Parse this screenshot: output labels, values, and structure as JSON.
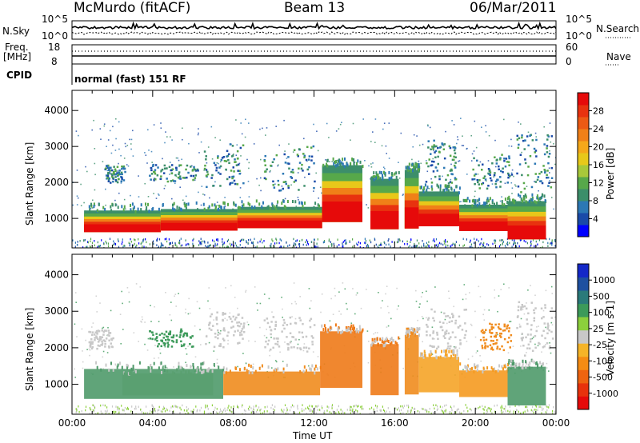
{
  "header": {
    "radar_title": "McMurdo (fitACF)",
    "beam": "Beam 13",
    "date": "06/Mar/2011"
  },
  "noise_panel": {
    "left_label": "N.Sky",
    "right_label": "N.Search",
    "left_ticks": [
      "10^5",
      "10^0"
    ],
    "right_ticks": [
      "10^5",
      "10^0"
    ]
  },
  "freq_panel": {
    "left_label_1": "Freq.",
    "left_label_2": "[MHz]",
    "right_label": "Nave",
    "left_ticks": [
      "18",
      "8"
    ],
    "right_ticks": [
      "60",
      "0"
    ]
  },
  "cpid_panel": {
    "label": "CPID",
    "mode": "normal (fast) 151 RF"
  },
  "chart_data": [
    {
      "type": "heatmap",
      "name_on_chart": "Power [dB]",
      "ylabel": "Slant Range [km]",
      "xlabel": "",
      "x_range_hours": [
        0,
        24
      ],
      "ylim": [
        180,
        4560
      ],
      "y_ticks": [
        "1000",
        "2000",
        "3000",
        "4000"
      ],
      "colorbar": {
        "label": "Power [dB]",
        "ticks": [
          "4",
          "8",
          "12",
          "16",
          "20",
          "24",
          "28"
        ],
        "colors": [
          "#0000ff",
          "#1a4aa8",
          "#2c78b4",
          "#3c8e6a",
          "#57a84a",
          "#a8c83a",
          "#e8c81a",
          "#f5a81a",
          "#f08018",
          "#ec5a14",
          "#e8320f",
          "#e60a0a"
        ]
      },
      "blocks_km": [
        {
          "t0": 0.6,
          "t1": 4.4,
          "lo": 620,
          "hi": 1220
        },
        {
          "t0": 4.4,
          "t1": 8.2,
          "lo": 660,
          "hi": 1260
        },
        {
          "t0": 8.2,
          "t1": 12.4,
          "lo": 730,
          "hi": 1320
        },
        {
          "t0": 12.4,
          "t1": 14.4,
          "lo": 900,
          "hi": 2480
        },
        {
          "t0": 14.8,
          "t1": 16.2,
          "lo": 700,
          "hi": 2100
        },
        {
          "t0": 16.5,
          "t1": 17.2,
          "lo": 720,
          "hi": 2350
        },
        {
          "t0": 17.2,
          "t1": 19.2,
          "lo": 780,
          "hi": 1750
        },
        {
          "t0": 19.2,
          "t1": 21.6,
          "lo": 650,
          "hi": 1380
        },
        {
          "t0": 21.6,
          "t1": 23.5,
          "lo": 420,
          "hi": 1480
        }
      ],
      "patches_km": [
        {
          "t0": 1.6,
          "t1": 2.6,
          "lo": 2000,
          "hi": 2500
        },
        {
          "t0": 3.8,
          "t1": 6.2,
          "lo": 2050,
          "hi": 2550
        },
        {
          "t0": 6.5,
          "t1": 8.5,
          "lo": 1900,
          "hi": 3100
        },
        {
          "t0": 9.5,
          "t1": 12.0,
          "lo": 1800,
          "hi": 3050
        },
        {
          "t0": 17.5,
          "t1": 19.0,
          "lo": 2000,
          "hi": 3200
        },
        {
          "t0": 19.8,
          "t1": 21.8,
          "lo": 1850,
          "hi": 2800
        },
        {
          "t0": 22.0,
          "t1": 23.8,
          "lo": 1750,
          "hi": 3400
        }
      ]
    },
    {
      "type": "heatmap",
      "name_on_chart": "Velocity [m s-1]",
      "ylabel": "Slant Range [km]",
      "xlabel": "Time UT",
      "x_range_hours": [
        0,
        24
      ],
      "x_ticks": [
        "00:00",
        "04:00",
        "08:00",
        "12:00",
        "16:00",
        "20:00",
        "00:00"
      ],
      "ylim": [
        180,
        4560
      ],
      "y_ticks": [
        "1000",
        "2000",
        "3000",
        "4000"
      ],
      "colorbar": {
        "label": "Velocity [m s-1]",
        "ticks": [
          "1000",
          "500",
          "100",
          "25",
          "-25",
          "-100",
          "-500",
          "-1000"
        ],
        "colors": [
          "#1428c8",
          "#1e50a0",
          "#2a7a7a",
          "#3c9a5a",
          "#8ccf3c",
          "#c8c8c8",
          "#f5b428",
          "#f58c14",
          "#ee6410",
          "#e8320c",
          "#e60a0a"
        ]
      },
      "blocks_km": [
        {
          "t0": 0.6,
          "t1": 7.5,
          "lo": 600,
          "hi": 1420,
          "color": "#4f9a6a"
        },
        {
          "t0": 2.5,
          "t1": 7.0,
          "lo": 700,
          "hi": 1300,
          "color": "#5aa070"
        },
        {
          "t0": 7.5,
          "t1": 12.3,
          "lo": 700,
          "hi": 1350,
          "color": "#f08c1e"
        },
        {
          "t0": 12.3,
          "t1": 14.4,
          "lo": 900,
          "hi": 2450,
          "color": "#ee7a18"
        },
        {
          "t0": 14.8,
          "t1": 16.2,
          "lo": 700,
          "hi": 2100,
          "color": "#ee7a18"
        },
        {
          "t0": 16.5,
          "t1": 17.2,
          "lo": 720,
          "hi": 2350,
          "color": "#f08c1e"
        },
        {
          "t0": 17.2,
          "t1": 19.2,
          "lo": 780,
          "hi": 1750,
          "color": "#f5a428"
        },
        {
          "t0": 19.2,
          "t1": 21.6,
          "lo": 650,
          "hi": 1380,
          "color": "#f59a20"
        },
        {
          "t0": 21.6,
          "t1": 23.5,
          "lo": 420,
          "hi": 1480,
          "color": "#4f9a6a"
        }
      ],
      "patches_km": [
        {
          "t0": 0.8,
          "t1": 2.0,
          "lo": 2000,
          "hi": 2500,
          "color": "#c8c8c8"
        },
        {
          "t0": 3.8,
          "t1": 6.0,
          "lo": 2050,
          "hi": 2550,
          "color": "#3c9a5a"
        },
        {
          "t0": 6.5,
          "t1": 8.5,
          "lo": 2000,
          "hi": 3000,
          "color": "#c8c8c8"
        },
        {
          "t0": 9.5,
          "t1": 12.0,
          "lo": 1900,
          "hi": 2900,
          "color": "#c8c8c8"
        },
        {
          "t0": 17.5,
          "t1": 19.5,
          "lo": 2000,
          "hi": 3100,
          "color": "#c8c8c8"
        },
        {
          "t0": 20.2,
          "t1": 21.8,
          "lo": 1950,
          "hi": 2700,
          "color": "#f08c1e"
        },
        {
          "t0": 22.0,
          "t1": 23.8,
          "lo": 1800,
          "hi": 3300,
          "color": "#c8c8c8"
        }
      ]
    }
  ]
}
